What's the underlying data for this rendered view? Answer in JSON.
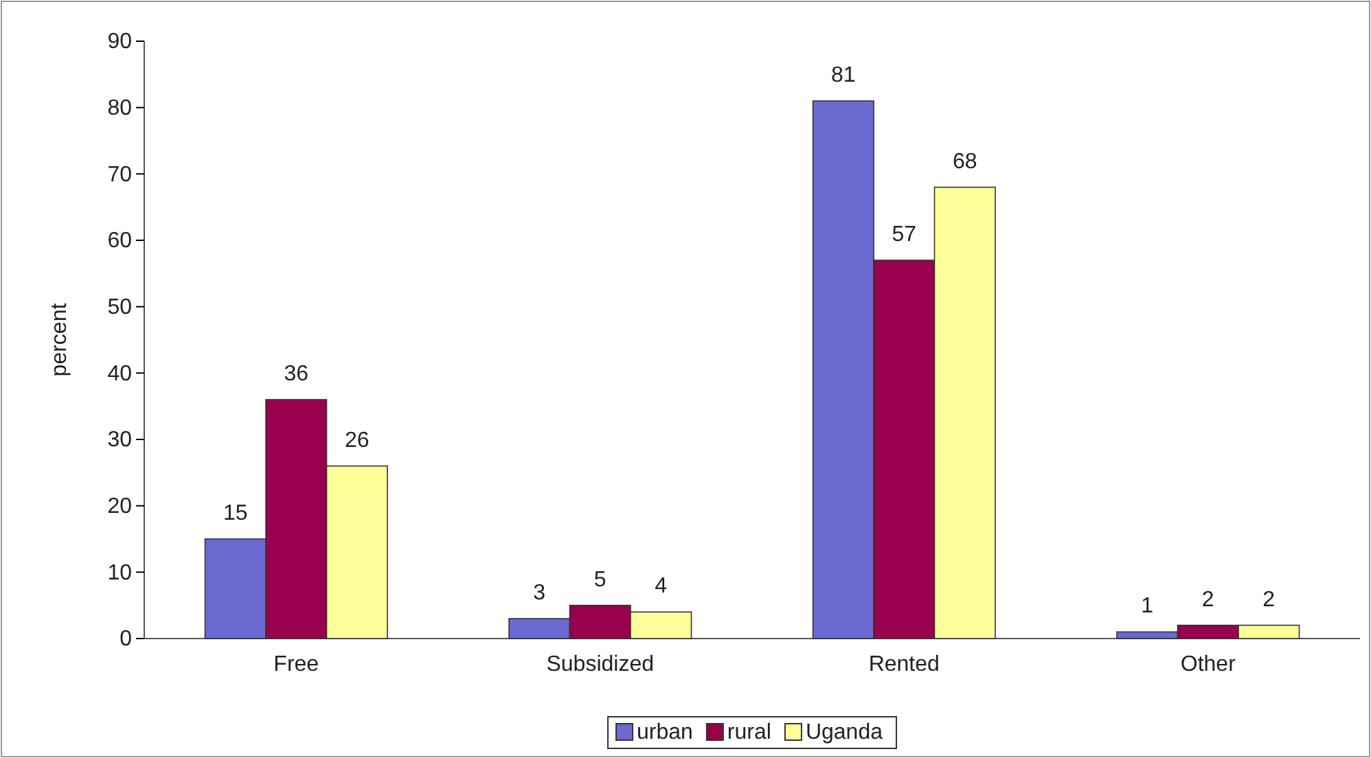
{
  "chart_data": {
    "type": "bar",
    "ylabel": "percent",
    "categories": [
      "Free",
      "Subsidized",
      "Rented",
      "Other"
    ],
    "series": [
      {
        "name": "urban",
        "color": "#6a6ad0",
        "values": [
          15,
          3,
          81,
          1
        ]
      },
      {
        "name": "rural",
        "color": "#99004d",
        "values": [
          36,
          5,
          57,
          2
        ]
      },
      {
        "name": "Uganda",
        "color": "#ffff99",
        "values": [
          26,
          4,
          68,
          2
        ]
      }
    ],
    "ylim": [
      0,
      90
    ],
    "yticks": [
      0,
      10,
      20,
      30,
      40,
      50,
      60,
      70,
      80,
      90
    ],
    "data_labels": true,
    "legend": "bottom",
    "grid": false
  }
}
